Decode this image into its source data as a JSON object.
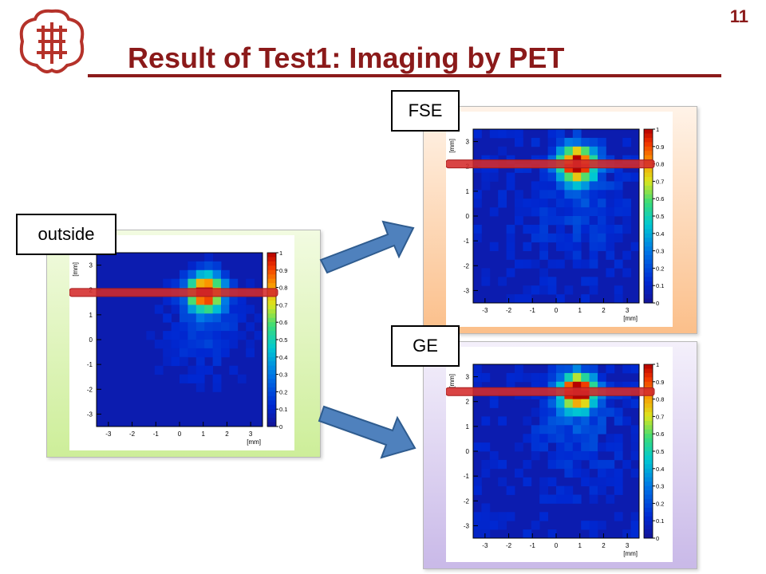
{
  "page_number": "11",
  "title": "Result of Test1: Imaging by PET",
  "labels": {
    "outside": "outside",
    "fse": "FSE",
    "ge": "GE"
  },
  "colors": {
    "title": "#8b1a1a",
    "marker_line": "#d42a2a",
    "arrow_fill": "#4f81bd",
    "panel_outside": "#cdee99",
    "panel_fse": "#fbbf8a",
    "panel_ge": "#c9b9e8"
  },
  "icons": {
    "logo": "university-seal-icon",
    "arrow": "right-arrow-icon"
  },
  "chart_data": [
    {
      "type": "heatmap",
      "name": "outside",
      "xlabel": "[mm]",
      "ylabel": "[mm]",
      "xlim": [
        -3.5,
        3.5
      ],
      "ylim": [
        -3.5,
        3.5
      ],
      "xticks": [
        "-3",
        "-2",
        "-1",
        "0",
        "1",
        "2",
        "3"
      ],
      "yticks": [
        "-3",
        "-2",
        "-1",
        "0",
        "1",
        "2",
        "3"
      ],
      "colorbar_ticks": [
        "0",
        "0.1",
        "0.2",
        "0.3",
        "0.4",
        "0.5",
        "0.6",
        "0.7",
        "0.8",
        "0.9",
        "1"
      ],
      "hotspot": {
        "x": 1.1,
        "y": 1.9,
        "peak": 1.0
      },
      "marker_y": 1.9
    },
    {
      "type": "heatmap",
      "name": "FSE",
      "xlabel": "[mm]",
      "ylabel": "[mm]",
      "xlim": [
        -3.5,
        3.5
      ],
      "ylim": [
        -3.5,
        3.5
      ],
      "xticks": [
        "-3",
        "-2",
        "-1",
        "0",
        "1",
        "2",
        "3"
      ],
      "yticks": [
        "-3",
        "-2",
        "-1",
        "0",
        "1",
        "2",
        "3"
      ],
      "colorbar_ticks": [
        "0",
        "0.1",
        "0.2",
        "0.3",
        "0.4",
        "0.5",
        "0.6",
        "0.7",
        "0.8",
        "0.9",
        "1"
      ],
      "hotspot": {
        "x": 0.9,
        "y": 2.1,
        "peak": 1.0
      },
      "marker_y": 2.1
    },
    {
      "type": "heatmap",
      "name": "GE",
      "xlabel": "[mm]",
      "ylabel": "[mm]",
      "xlim": [
        -3.5,
        3.5
      ],
      "ylim": [
        -3.5,
        3.5
      ],
      "xticks": [
        "-3",
        "-2",
        "-1",
        "0",
        "1",
        "2",
        "3"
      ],
      "yticks": [
        "-3",
        "-2",
        "-1",
        "0",
        "1",
        "2",
        "3"
      ],
      "colorbar_ticks": [
        "0",
        "0.1",
        "0.2",
        "0.3",
        "0.4",
        "0.5",
        "0.6",
        "0.7",
        "0.8",
        "0.9",
        "1"
      ],
      "hotspot": {
        "x": 0.9,
        "y": 2.4,
        "peak": 1.0
      },
      "marker_y": 2.4
    }
  ]
}
